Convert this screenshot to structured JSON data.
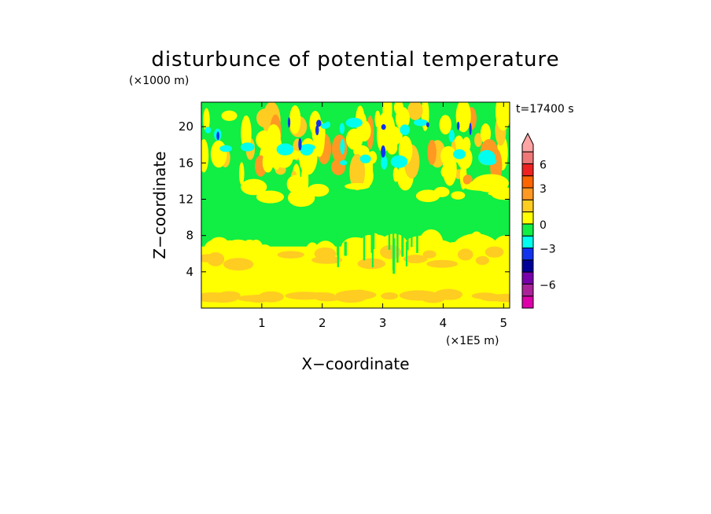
{
  "chart_data": {
    "type": "heatmap",
    "title": "disturbunce of potential temperature",
    "ylabel_units": "(×1000 m)",
    "xlabel_units": "(×1E5 m)",
    "xlabel": "X−coordinate",
    "ylabel": "Z−coordinate",
    "time_label": "t=17400 s",
    "xlim": [
      0,
      5.1
    ],
    "ylim": [
      0,
      22.7
    ],
    "xticks": [
      {
        "value": 1,
        "label": "1"
      },
      {
        "value": 2,
        "label": "2"
      },
      {
        "value": 3,
        "label": "3"
      },
      {
        "value": 4,
        "label": "4"
      },
      {
        "value": 5,
        "label": "5"
      }
    ],
    "yticks": [
      {
        "value": 4,
        "label": "4"
      },
      {
        "value": 8,
        "label": "8"
      },
      {
        "value": 12,
        "label": "12"
      },
      {
        "value": 16,
        "label": "16"
      },
      {
        "value": 20,
        "label": "20"
      }
    ],
    "colorbar": {
      "levels": [
        {
          "color": "#dd00aa",
          "label": ""
        },
        {
          "color": "#aa2299",
          "label": "−6"
        },
        {
          "color": "#7700aa",
          "label": ""
        },
        {
          "color": "#000099",
          "label": ""
        },
        {
          "color": "#1133ee",
          "label": "−3"
        },
        {
          "color": "#00ffee",
          "label": ""
        },
        {
          "color": "#11ee44",
          "label": "0"
        },
        {
          "color": "#ffff00",
          "label": ""
        },
        {
          "color": "#ffcc22",
          "label": ""
        },
        {
          "color": "#ff9922",
          "label": "3"
        },
        {
          "color": "#ff6600",
          "label": ""
        },
        {
          "color": "#ee2222",
          "label": "6"
        },
        {
          "color": "#ee7777",
          "label": ""
        },
        {
          "color": "#ffa4a4",
          "label": ""
        }
      ]
    },
    "field_description_rows": [
      {
        "z_range": [
          0,
          1.5
        ],
        "dominant_level": 7
      },
      {
        "z_range": [
          1.5,
          3
        ],
        "dominant_level": 8
      },
      {
        "z_range": [
          3,
          8
        ],
        "dominant_level": 7
      },
      {
        "z_range": [
          8,
          10.5
        ],
        "dominant_level": 6
      },
      {
        "z_range": [
          10.5,
          15.5
        ],
        "dominant_level": 6
      },
      {
        "z_range": [
          15.5,
          22.7
        ],
        "dominant_level": 6
      }
    ]
  }
}
